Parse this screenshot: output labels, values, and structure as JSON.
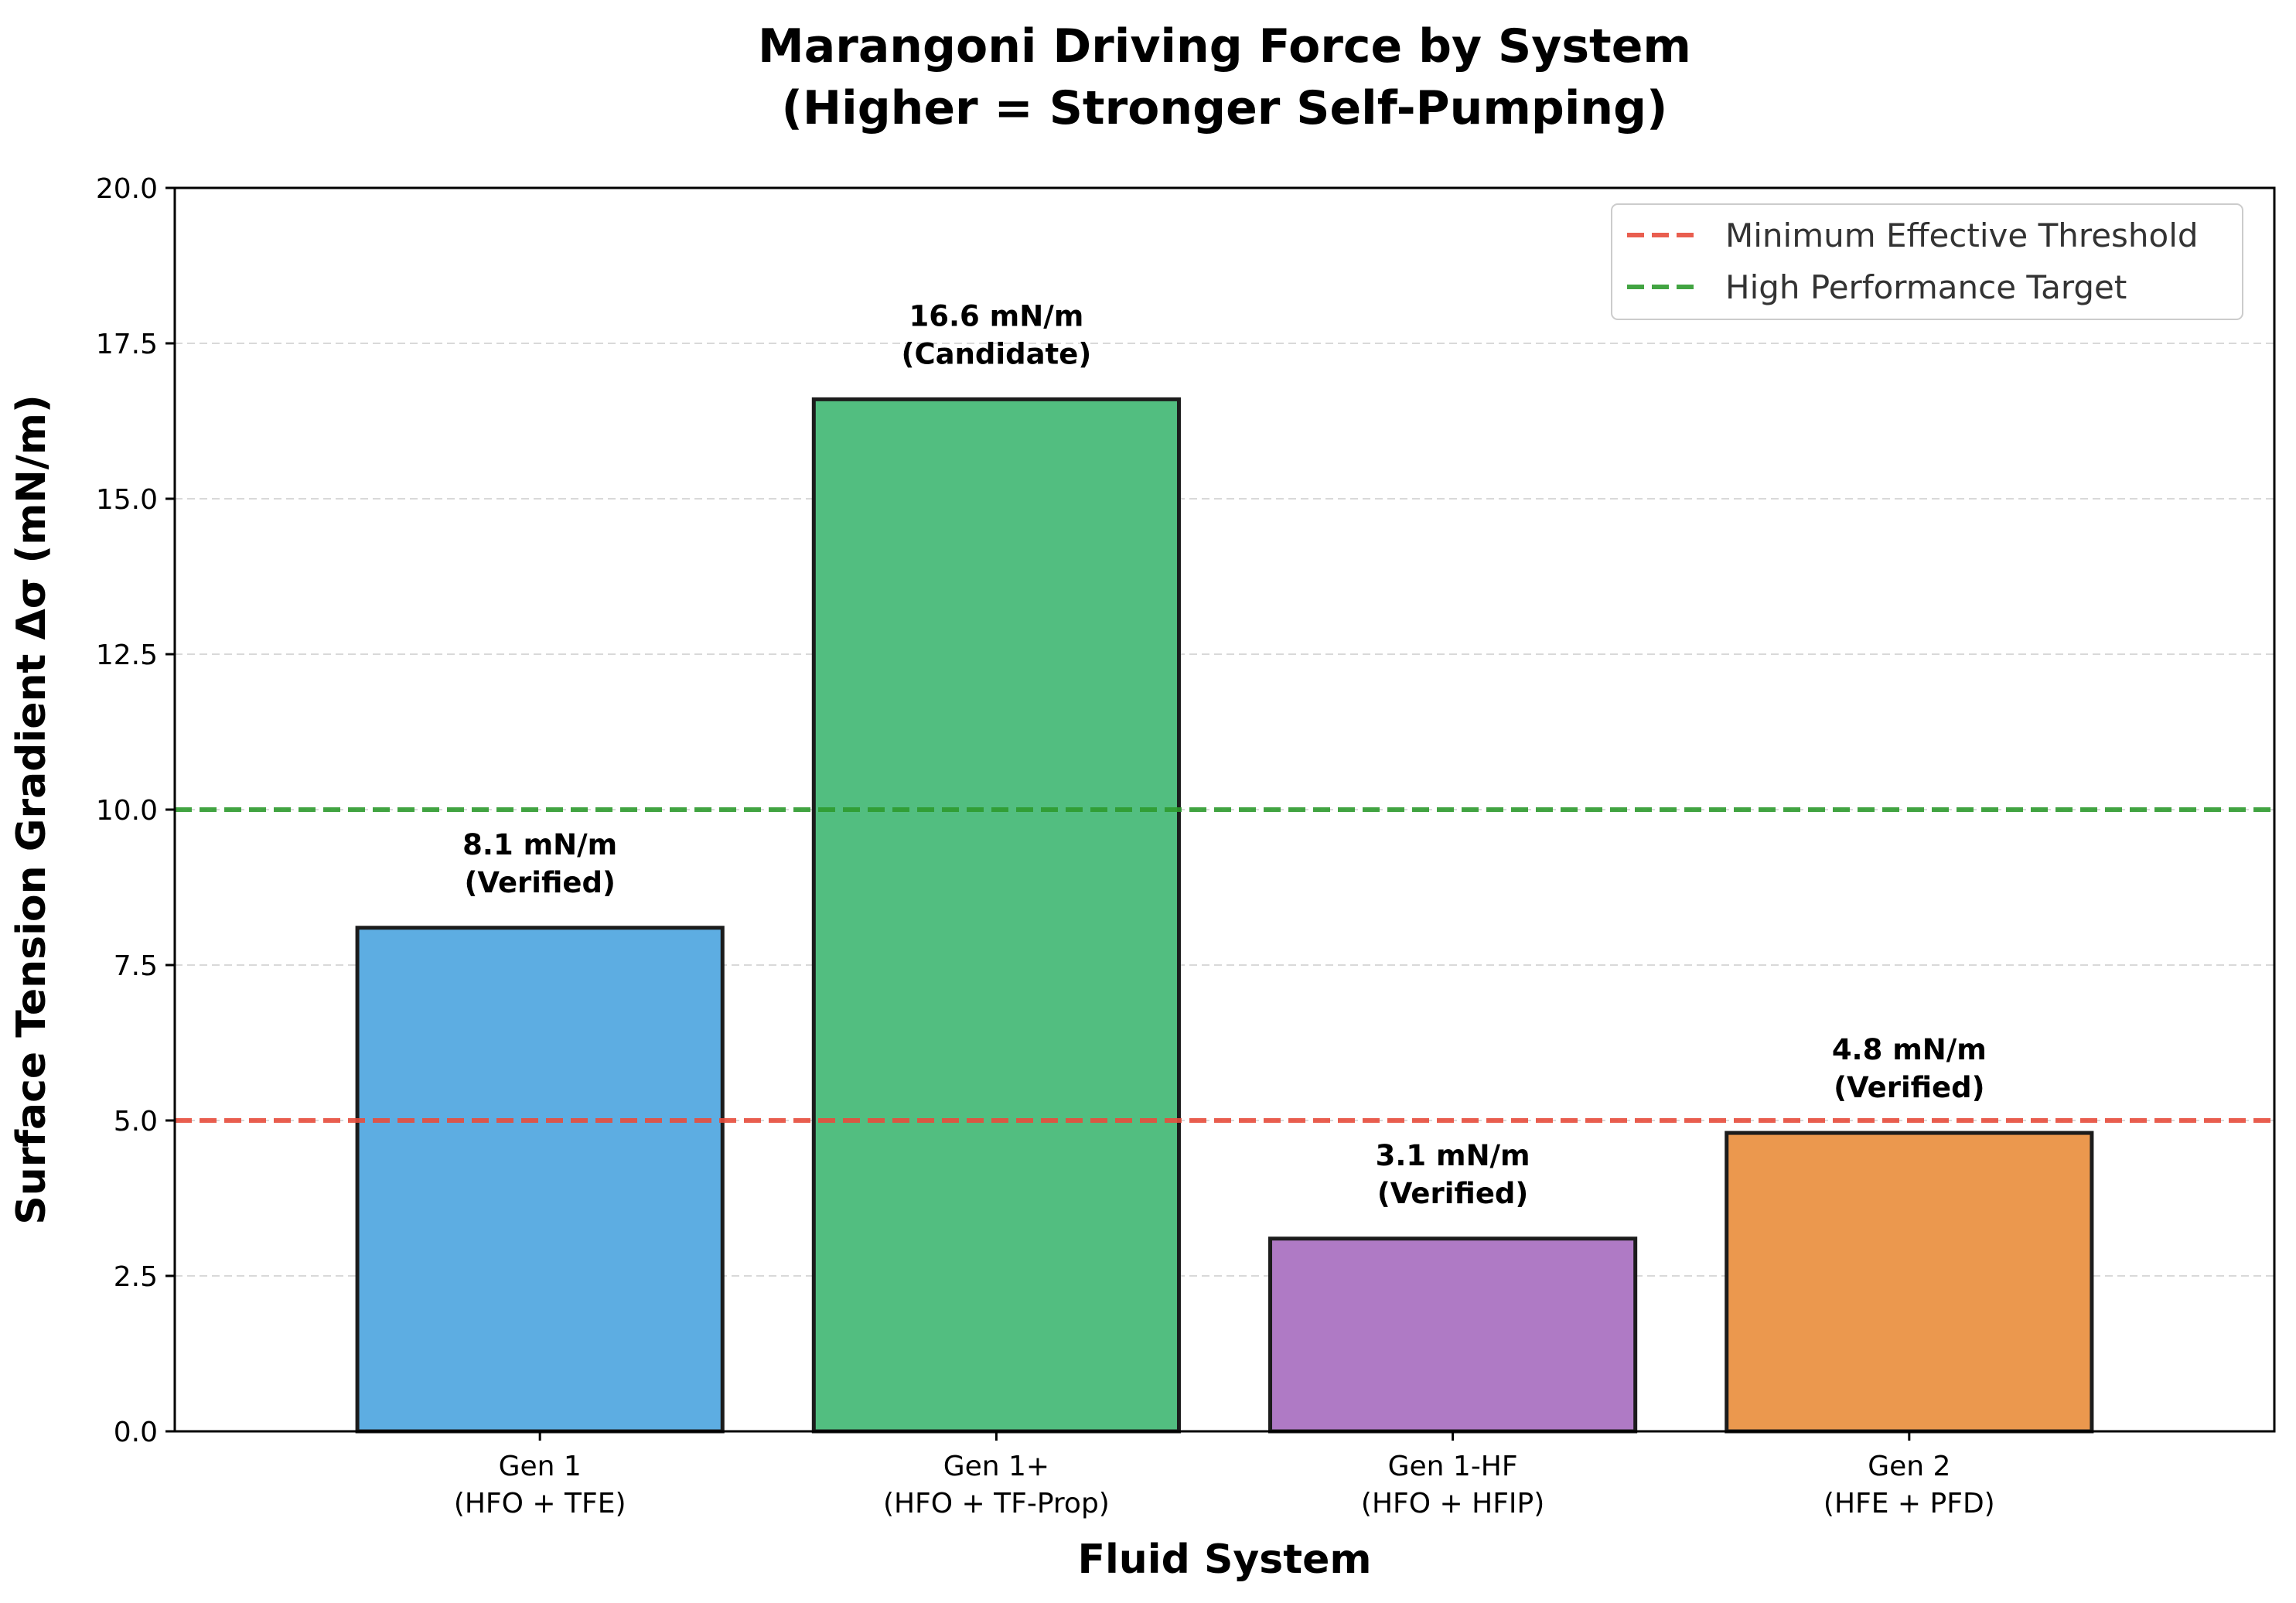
{
  "chart_data": {
    "type": "bar",
    "title_lines": [
      "Marangoni Driving Force by System",
      "(Higher = Stronger Self-Pumping)"
    ],
    "xlabel": "Fluid System",
    "ylabel": "Surface Tension Gradient Δσ (mN/m)",
    "ylim": [
      0,
      20
    ],
    "yticks": [
      "0.0",
      "2.5",
      "5.0",
      "7.5",
      "10.0",
      "12.5",
      "15.0",
      "17.5",
      "20.0"
    ],
    "grid": "y-dashed",
    "legend_position": "top-right",
    "bars": [
      {
        "category": [
          "Gen 1",
          "(HFO + TFE)"
        ],
        "value": 8.1,
        "label": [
          "8.1 mN/m",
          "(Verified)"
        ],
        "color": "#5dade2"
      },
      {
        "category": [
          "Gen 1+",
          "(HFO + TF-Prop)"
        ],
        "value": 16.6,
        "label": [
          "16.6 mN/m",
          "(Candidate)"
        ],
        "color": "#52be80"
      },
      {
        "category": [
          "Gen 1-HF",
          "(HFO + HFIP)"
        ],
        "value": 3.1,
        "label": [
          "3.1 mN/m",
          "(Verified)"
        ],
        "color": "#af7ac5"
      },
      {
        "category": [
          "Gen 2",
          "(HFE + PFD)"
        ],
        "value": 4.8,
        "label": [
          "4.8 mN/m",
          "(Verified)"
        ],
        "color": "#eb984e"
      }
    ],
    "reference_lines": [
      {
        "name": "Minimum Effective Threshold",
        "value": 5,
        "color": "#e74c3c"
      },
      {
        "name": "High Performance Target",
        "value": 10,
        "color": "#2e9a2e"
      }
    ]
  }
}
